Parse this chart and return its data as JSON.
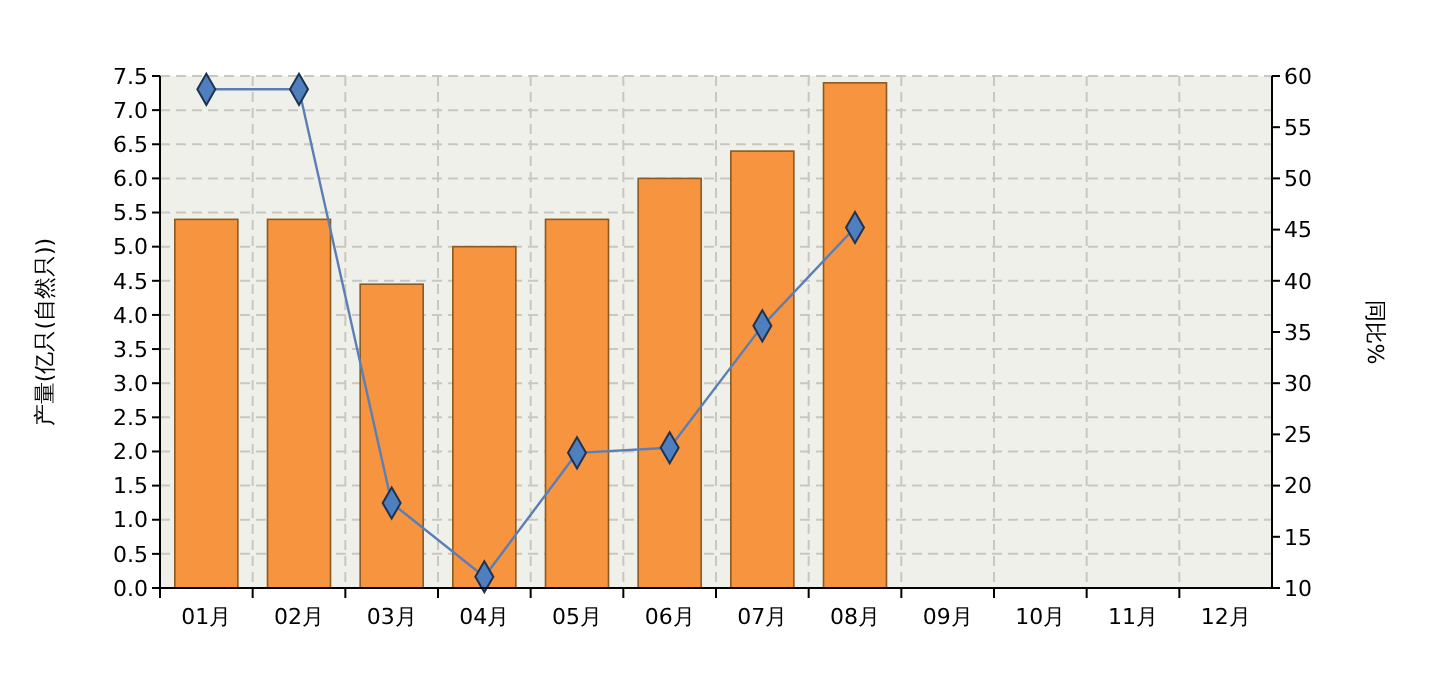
{
  "chart_data": {
    "type": "bar",
    "ylabel": "产量(亿只(自然只))",
    "y2label": "同比%",
    "categories": [
      "01月",
      "02月",
      "03月",
      "04月",
      "05月",
      "06月",
      "07月",
      "08月",
      "09月",
      "10月",
      "11月",
      "12月"
    ],
    "series": [
      {
        "color": "#f7943f",
        "values": [
          5.4,
          5.4,
          4.45,
          5.0,
          5.4,
          6.0,
          6.4,
          7.4,
          null,
          null,
          null,
          null
        ]
      },
      {
        "type": "line",
        "axis": "y2",
        "color": "#5b7fb5",
        "marker": "diamond",
        "values": [
          58.7,
          58.7,
          18.3,
          11.1,
          23.2,
          23.7,
          35.6,
          45.2,
          null,
          null,
          null,
          null
        ]
      }
    ],
    "ylim": [
      0,
      7.5
    ],
    "yticks": [
      {
        "value": 0,
        "label": "0.0"
      },
      {
        "value": 0.5,
        "label": "0.5"
      },
      {
        "value": 1,
        "label": "1.0"
      },
      {
        "value": 1.5,
        "label": "1.5"
      },
      {
        "value": 2,
        "label": "2.0"
      },
      {
        "value": 2.5,
        "label": "2.5"
      },
      {
        "value": 3,
        "label": "3.0"
      },
      {
        "value": 3.5,
        "label": "3.5"
      },
      {
        "value": 4,
        "label": "4.0"
      },
      {
        "value": 4.5,
        "label": "4.5"
      },
      {
        "value": 5,
        "label": "5.0"
      },
      {
        "value": 5.5,
        "label": "5.5"
      },
      {
        "value": 6,
        "label": "6.0"
      },
      {
        "value": 6.5,
        "label": "6.5"
      },
      {
        "value": 7,
        "label": "7.0"
      },
      {
        "value": 7.5,
        "label": "7.5"
      }
    ],
    "y2lim": [
      10,
      60
    ],
    "y2ticks": [
      10,
      15,
      20,
      25,
      30,
      35,
      40,
      45,
      50,
      55,
      60
    ],
    "grid": true
  }
}
